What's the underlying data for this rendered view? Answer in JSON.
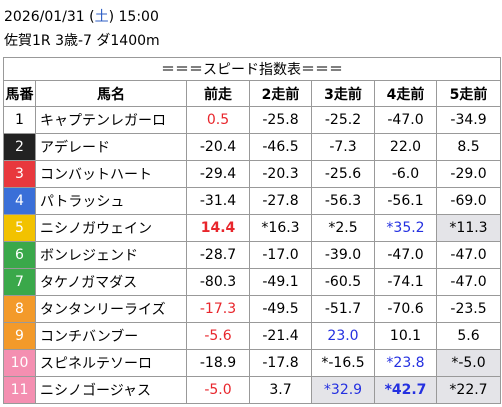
{
  "header": {
    "line1": [
      "2026/01/31 (",
      "土",
      ") 15:00"
    ],
    "race": "佐賀1R 3歳-7 ダ1400m"
  },
  "table": {
    "title": "＝＝＝スピード指数表＝＝＝",
    "columns": [
      "馬番",
      "馬名",
      "前走",
      "2走前",
      "3走前",
      "4走前",
      "5走前"
    ],
    "rows": [
      [
        "1",
        "キャプテンレガーロ",
        "0.5",
        "-25.8",
        "-25.2",
        "-47.0",
        "-34.9"
      ],
      [
        "2",
        "アデレード",
        "-20.4",
        "-46.5",
        "-7.3",
        "22.0",
        "8.5"
      ],
      [
        "3",
        "コンバットハート",
        "-29.4",
        "-20.3",
        "-25.6",
        "-6.0",
        "-29.0"
      ],
      [
        "4",
        "パトラッシュ",
        "-31.4",
        "-27.8",
        "-56.3",
        "-56.1",
        "-69.0"
      ],
      [
        "5",
        "ニシノガウェイン",
        "14.4",
        "*16.3",
        "*2.5",
        "*35.2",
        "*11.3"
      ],
      [
        "6",
        "ボンレジェンド",
        "-28.7",
        "-17.0",
        "-39.0",
        "-47.0",
        "-47.0"
      ],
      [
        "7",
        "タケノガマダス",
        "-80.3",
        "-49.1",
        "-60.5",
        "-74.1",
        "-47.0"
      ],
      [
        "8",
        "タンタンリーライズ",
        "-17.3",
        "-49.5",
        "-51.7",
        "-70.6",
        "-23.5"
      ],
      [
        "9",
        "コンチバンブー",
        "-5.6",
        "-21.4",
        "23.0",
        "10.1",
        "5.6"
      ],
      [
        "10",
        "スピネルテソーロ",
        "-18.9",
        "-17.8",
        "*-16.5",
        "*23.8",
        "*-5.0"
      ],
      [
        "11",
        "ニシノゴージャス",
        "-5.0",
        "3.7",
        "*32.9",
        "*42.7",
        "*22.7"
      ]
    ],
    "frames": [
      {
        "bg": "#ffffff",
        "fg": "#000000"
      },
      {
        "bg": "#222222",
        "fg": "#ffffff"
      },
      {
        "bg": "#e8383d",
        "fg": "#ffffff"
      },
      {
        "bg": "#3a6fd8",
        "fg": "#ffffff"
      },
      {
        "bg": "#f2c200",
        "fg": "#ffffff"
      },
      {
        "bg": "#3aa84a",
        "fg": "#ffffff"
      },
      {
        "bg": "#3aa84a",
        "fg": "#ffffff"
      },
      {
        "bg": "#f39a2a",
        "fg": "#ffffff"
      },
      {
        "bg": "#f39a2a",
        "fg": "#ffffff"
      },
      {
        "bg": "#f48fb1",
        "fg": "#ffffff"
      },
      {
        "bg": "#f48fb1",
        "fg": "#ffffff"
      }
    ],
    "cell_styles": [
      [
        "red",
        null,
        null,
        null,
        null
      ],
      [
        null,
        null,
        null,
        null,
        null
      ],
      [
        null,
        null,
        null,
        null,
        null
      ],
      [
        null,
        null,
        null,
        null,
        null
      ],
      [
        "red bold",
        null,
        null,
        "blue",
        "gray"
      ],
      [
        null,
        null,
        null,
        null,
        null
      ],
      [
        null,
        null,
        null,
        null,
        null
      ],
      [
        "red",
        null,
        null,
        null,
        null
      ],
      [
        "red",
        null,
        "blue",
        null,
        null
      ],
      [
        null,
        null,
        null,
        "blue",
        "gray"
      ],
      [
        "red",
        null,
        "blue gray",
        "blue bold gray",
        "gray"
      ]
    ]
  }
}
